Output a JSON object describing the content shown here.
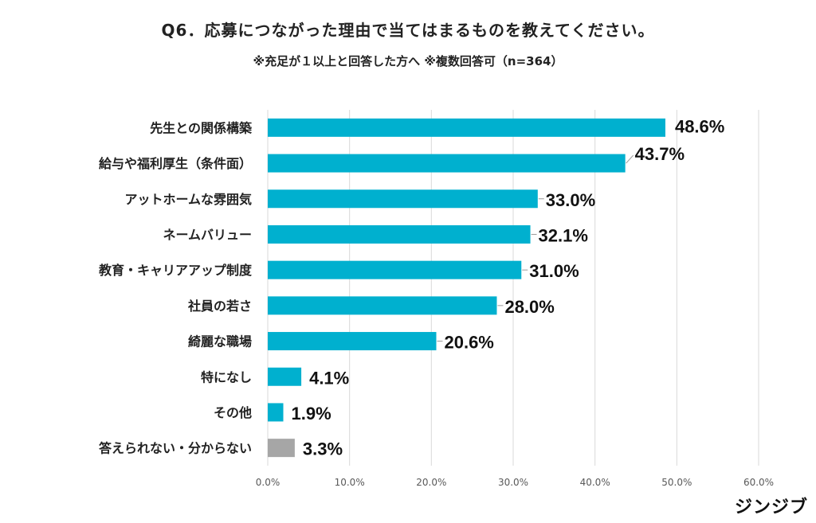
{
  "title": "Q6．応募につながった理由で当てはまるものを教えてください。",
  "subtitle": "※充足が１以上と回答した方へ ※複数回答可（n=364）",
  "logo": "ジンジブ",
  "chart_data": {
    "type": "bar",
    "orientation": "horizontal",
    "title": "Q6．応募につながった理由で当てはまるものを教えてください。",
    "subtitle": "※充足が１以上と回答した方へ ※複数回答可（n=364）",
    "categories": [
      "先生との関係構築",
      "給与や福利厚生（条件面）",
      "アットホームな雰囲気",
      "ネームバリュー",
      "教育・キャリアアップ制度",
      "社員の若さ",
      "綺麗な職場",
      "特になし",
      "その他",
      "答えられない・分からない"
    ],
    "values": [
      48.6,
      43.7,
      33.0,
      32.1,
      31.0,
      28.0,
      20.6,
      4.1,
      1.9,
      3.3
    ],
    "value_labels": [
      "48.6%",
      "43.7%",
      "33.0%",
      "32.1%",
      "31.0%",
      "28.0%",
      "20.6%",
      "4.1%",
      "1.9%",
      "3.3%"
    ],
    "colors": [
      "#00B0CF",
      "#00B0CF",
      "#00B0CF",
      "#00B0CF",
      "#00B0CF",
      "#00B0CF",
      "#00B0CF",
      "#00B0CF",
      "#00B0CF",
      "#A6A6A6"
    ],
    "xlim": [
      0,
      60
    ],
    "xticks": [
      "0.0%",
      "10.0%",
      "20.0%",
      "30.0%",
      "40.0%",
      "50.0%",
      "60.0%"
    ],
    "grid": true,
    "legend": "none"
  }
}
